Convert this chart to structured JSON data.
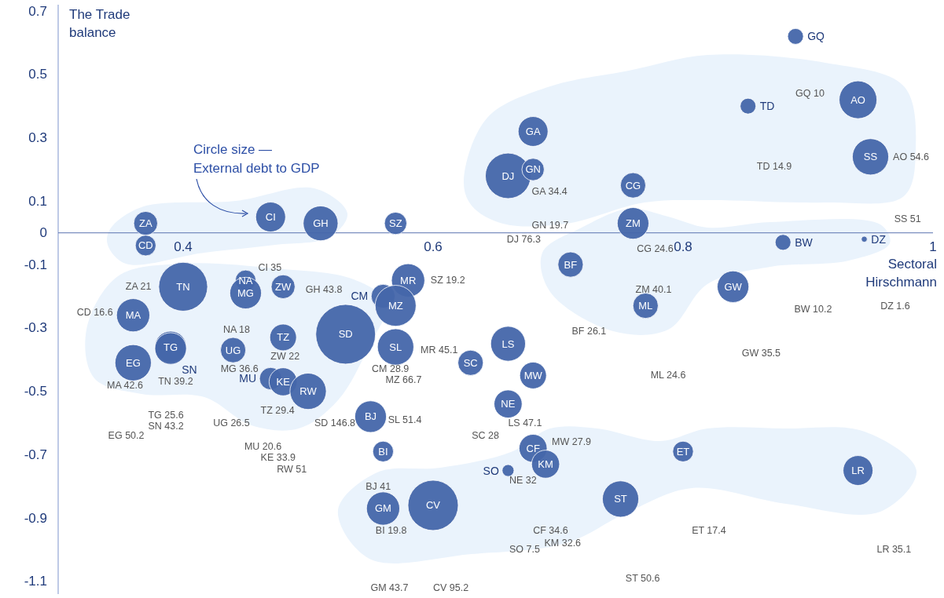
{
  "chart_data": {
    "type": "bubble",
    "xlabel": "Sectoral Hirschmann",
    "ylabel": "The Trade balance",
    "color": "#4466aa",
    "xlim": [
      0.3,
      1.0
    ],
    "xticks": [
      0.4,
      0.6,
      0.8,
      1
    ],
    "ylim": [
      -1.14,
      0.72
    ],
    "yticks": [
      0.7,
      0.5,
      0.3,
      0.1,
      0,
      -0.1,
      -0.3,
      -0.5,
      -0.7,
      -0.9,
      -1.1
    ],
    "series": [
      {
        "name": "GQ",
        "x": [
          0.89
        ],
        "values": [
          0.62
        ],
        "sizes": [
          0.07
        ]
      },
      {
        "name": "AO",
        "x": [
          0.94
        ],
        "values": [
          0.42
        ],
        "sizes": [
          0.4
        ]
      },
      {
        "name": "TD",
        "x": [
          0.852
        ],
        "values": [
          0.4
        ],
        "sizes": [
          0.07
        ]
      },
      {
        "name": "SS",
        "x": [
          0.95
        ],
        "values": [
          0.24
        ],
        "sizes": [
          0.37
        ]
      },
      {
        "name": "GA",
        "x": [
          0.68
        ],
        "values": [
          0.32
        ],
        "sizes": [
          0.25
        ]
      },
      {
        "name": "DJ",
        "x": [
          0.66
        ],
        "values": [
          0.18
        ],
        "sizes": [
          0.58
        ]
      },
      {
        "name": "GN",
        "x": [
          0.68
        ],
        "values": [
          0.2
        ],
        "sizes": [
          0.14
        ]
      },
      {
        "name": "CG",
        "x": [
          0.76
        ],
        "values": [
          0.15
        ],
        "sizes": [
          0.18
        ]
      },
      {
        "name": "ZM",
        "x": [
          0.76
        ],
        "values": [
          0.03
        ],
        "sizes": [
          0.28
        ]
      },
      {
        "name": "BF",
        "x": [
          0.71
        ],
        "values": [
          -0.1
        ],
        "sizes": [
          0.18
        ]
      },
      {
        "name": "BW",
        "x": [
          0.88
        ],
        "values": [
          -0.03
        ],
        "sizes": [
          0.07
        ]
      },
      {
        "name": "DZ",
        "x": [
          0.945
        ],
        "values": [
          -0.02
        ],
        "sizes": [
          0.01
        ]
      },
      {
        "name": "GW",
        "x": [
          0.84
        ],
        "values": [
          -0.17
        ],
        "sizes": [
          0.28
        ]
      },
      {
        "name": "ML",
        "x": [
          0.77
        ],
        "values": [
          -0.23
        ],
        "sizes": [
          0.18
        ]
      },
      {
        "name": "ZA",
        "x": [
          0.37
        ],
        "values": [
          0.03
        ],
        "sizes": [
          0.16
        ]
      },
      {
        "name": "CD",
        "x": [
          0.37
        ],
        "values": [
          -0.04
        ],
        "sizes": [
          0.12
        ]
      },
      {
        "name": "CI",
        "x": [
          0.47
        ],
        "values": [
          0.05
        ],
        "sizes": [
          0.25
        ]
      },
      {
        "name": "GH",
        "x": [
          0.51
        ],
        "values": [
          0.03
        ],
        "sizes": [
          0.34
        ]
      },
      {
        "name": "SZ",
        "x": [
          0.57
        ],
        "values": [
          0.03
        ],
        "sizes": [
          0.14
        ]
      },
      {
        "name": "TN",
        "x": [
          0.4
        ],
        "values": [
          -0.17
        ],
        "sizes": [
          0.67
        ]
      },
      {
        "name": "NA",
        "x": [
          0.45
        ],
        "values": [
          -0.15
        ],
        "sizes": [
          0.12
        ]
      },
      {
        "name": "MG",
        "x": [
          0.45
        ],
        "values": [
          -0.19
        ],
        "sizes": [
          0.28
        ]
      },
      {
        "name": "ZW",
        "x": [
          0.48
        ],
        "values": [
          -0.17
        ],
        "sizes": [
          0.16
        ]
      },
      {
        "name": "MA",
        "x": [
          0.36
        ],
        "values": [
          -0.26
        ],
        "sizes": [
          0.31
        ]
      },
      {
        "name": "TG",
        "x": [
          0.39
        ],
        "values": [
          -0.36
        ],
        "sizes": [
          0.28
        ]
      },
      {
        "name": "SN",
        "x": [
          0.39
        ],
        "values": [
          -0.365
        ],
        "sizes": [
          0.28
        ]
      },
      {
        "name": "EG",
        "x": [
          0.36
        ],
        "values": [
          -0.41
        ],
        "sizes": [
          0.37
        ]
      },
      {
        "name": "UG",
        "x": [
          0.44
        ],
        "values": [
          -0.37
        ],
        "sizes": [
          0.18
        ]
      },
      {
        "name": "TZ",
        "x": [
          0.48
        ],
        "values": [
          -0.33
        ],
        "sizes": [
          0.2
        ]
      },
      {
        "name": "MU",
        "x": [
          0.47
        ],
        "values": [
          -0.46
        ],
        "sizes": [
          0.14
        ]
      },
      {
        "name": "KE",
        "x": [
          0.48
        ],
        "values": [
          -0.47
        ],
        "sizes": [
          0.22
        ]
      },
      {
        "name": "RW",
        "x": [
          0.5
        ],
        "values": [
          -0.5
        ],
        "sizes": [
          0.37
        ]
      },
      {
        "name": "SD",
        "x": [
          0.53
        ],
        "values": [
          -0.32
        ],
        "sizes": [
          1
        ]
      },
      {
        "name": "CM",
        "x": [
          0.56
        ],
        "values": [
          -0.2
        ],
        "sizes": [
          0.16
        ]
      },
      {
        "name": "MR",
        "x": [
          0.58
        ],
        "values": [
          -0.15
        ],
        "sizes": [
          0.31
        ]
      },
      {
        "name": "MZ",
        "x": [
          0.57
        ],
        "values": [
          -0.23
        ],
        "sizes": [
          0.47
        ]
      },
      {
        "name": "SL",
        "x": [
          0.57
        ],
        "values": [
          -0.36
        ],
        "sizes": [
          0.37
        ]
      },
      {
        "name": "BJ",
        "x": [
          0.55
        ],
        "values": [
          -0.58
        ],
        "sizes": [
          0.28
        ]
      },
      {
        "name": "BI",
        "x": [
          0.56
        ],
        "values": [
          -0.69
        ],
        "sizes": [
          0.12
        ]
      },
      {
        "name": "GM",
        "x": [
          0.56
        ],
        "values": [
          -0.87
        ],
        "sizes": [
          0.31
        ]
      },
      {
        "name": "CV",
        "x": [
          0.6
        ],
        "values": [
          -0.86
        ],
        "sizes": [
          0.71
        ]
      },
      {
        "name": "SC",
        "x": [
          0.63
        ],
        "values": [
          -0.41
        ],
        "sizes": [
          0.18
        ]
      },
      {
        "name": "LS",
        "x": [
          0.66
        ],
        "values": [
          -0.35
        ],
        "sizes": [
          0.34
        ]
      },
      {
        "name": "MW",
        "x": [
          0.68
        ],
        "values": [
          -0.45
        ],
        "sizes": [
          0.2
        ]
      },
      {
        "name": "NE",
        "x": [
          0.66
        ],
        "values": [
          -0.54
        ],
        "sizes": [
          0.22
        ]
      },
      {
        "name": "CF",
        "x": [
          0.68
        ],
        "values": [
          -0.68
        ],
        "sizes": [
          0.22
        ]
      },
      {
        "name": "KM",
        "x": [
          0.69
        ],
        "values": [
          -0.73
        ],
        "sizes": [
          0.22
        ]
      },
      {
        "name": "SO",
        "x": [
          0.66
        ],
        "values": [
          -0.75
        ],
        "sizes": [
          0.04
        ]
      },
      {
        "name": "ST",
        "x": [
          0.75
        ],
        "values": [
          -0.84
        ],
        "sizes": [
          0.37
        ]
      },
      {
        "name": "ET",
        "x": [
          0.8
        ],
        "values": [
          -0.69
        ],
        "sizes": [
          0.12
        ]
      },
      {
        "name": "LR",
        "x": [
          0.94
        ],
        "values": [
          -0.75
        ],
        "sizes": [
          0.25
        ]
      }
    ],
    "annotations": [
      "Circle size — External debt to GDP",
      "GQ 10",
      "TD 14.9",
      "AO 54.6",
      "SS 51",
      "GA 34.4",
      "GN 19.7",
      "DJ 76.3",
      "CG 24.6",
      "ZM 40.1",
      "BF 26.1",
      "BW 10.2",
      "DZ 1.6",
      "GW 35.5",
      "ML 24.6",
      "ET 17.4",
      "LR 35.1",
      "ST 50.6",
      "ZA 21",
      "CD 16.6",
      "MA 42.6",
      "EG 50.2",
      "TN 39.2",
      "TG 25.6",
      "SN 43.2",
      "CI 35",
      "GH 43.8",
      "NA 18",
      "MG 36.6",
      "ZW 22",
      "UG 26.5",
      "TZ 29.4",
      "MU 20.6",
      "KE 33.9",
      "RW 51",
      "SZ 19.2",
      "SD 146.8",
      "MR 45.1",
      "CM 28.9",
      "MZ 66.7",
      "SL 51.4",
      "BJ 41",
      "BI 19.8",
      "GM 43.7",
      "CV 95.2",
      "SC 28",
      "LS 47.1",
      "MW 27.9",
      "NE 32",
      "CF 34.6",
      "KM 32.6",
      "SO 7.5"
    ]
  }
}
